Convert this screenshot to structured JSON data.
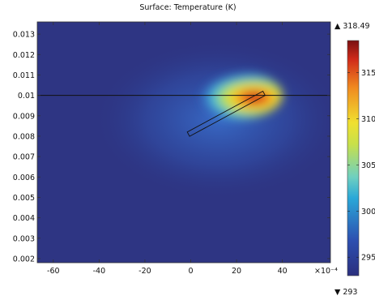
{
  "chart_data": {
    "type": "heatmap",
    "title": "Surface: Temperature (K)",
    "x_scale_label": "×10⁻⁴",
    "x_ticks": [
      -60,
      -40,
      -20,
      0,
      20,
      40
    ],
    "x_tick_labels": [
      "-60",
      "-40",
      "-20",
      "0",
      "20",
      "40"
    ],
    "xlim": [
      -67,
      61
    ],
    "y_ticks": [
      0.002,
      0.003,
      0.004,
      0.005,
      0.006,
      0.007,
      0.008,
      0.009,
      0.01,
      0.011,
      0.012,
      0.013
    ],
    "y_tick_labels": [
      "0.002",
      "0.003",
      "0.004",
      "0.005",
      "0.006",
      "0.007",
      "0.008",
      "0.009",
      "0.01",
      "0.011",
      "0.012",
      "0.013"
    ],
    "ylim": [
      0.0018,
      0.0136
    ],
    "colorbar": {
      "min": 293,
      "max": 318.49,
      "max_label": "▲ 318.49",
      "min_label": "▼ 293",
      "ticks": [
        295,
        300,
        305,
        310,
        315
      ],
      "tick_labels": [
        "295",
        "300",
        "305",
        "310",
        "315"
      ],
      "colormap": "rainbow"
    },
    "horizontal_line_y": 0.01,
    "hotspot": {
      "x": 28,
      "y": 0.01,
      "max_temperature": 318.49
    },
    "strip": {
      "from": [
        -1,
        0.0081
      ],
      "to": [
        32,
        0.0101
      ]
    }
  }
}
